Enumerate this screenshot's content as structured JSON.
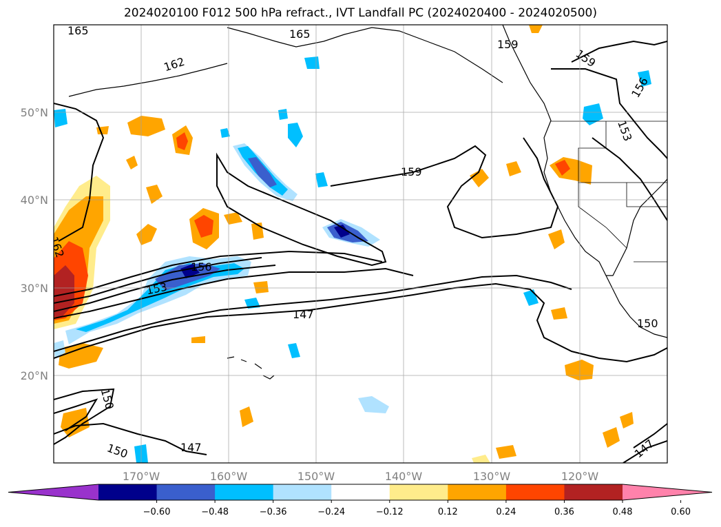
{
  "title": "2024020100 F012 500 hPa refract., IVT Landfall PC (2024020400 - 2024020500)",
  "map": {
    "lon_labels": [
      "170°W",
      "160°W",
      "150°W",
      "140°W",
      "130°W",
      "120°W"
    ],
    "lat_labels": [
      "50°N",
      "40°N",
      "30°N",
      "20°N"
    ],
    "contour_labels": [
      "165",
      "165",
      "162",
      "159",
      "159",
      "159",
      "156",
      "153",
      "156",
      "153",
      "150",
      "150",
      "147",
      "147",
      "150",
      "147",
      "162"
    ]
  },
  "colorbar": {
    "colors": [
      "#9932cc",
      "#00008b",
      "#3a5fcd",
      "#00bfff",
      "#b0e2ff",
      "#ffffff",
      "#ffec8b",
      "#ffa500",
      "#ff4500",
      "#b22222",
      "#ff82ab"
    ],
    "tick_labels": [
      "−0.60",
      "−0.48",
      "−0.36",
      "−0.24",
      "−0.12",
      "0.12",
      "0.24",
      "0.36",
      "0.48",
      "0.60"
    ]
  }
}
